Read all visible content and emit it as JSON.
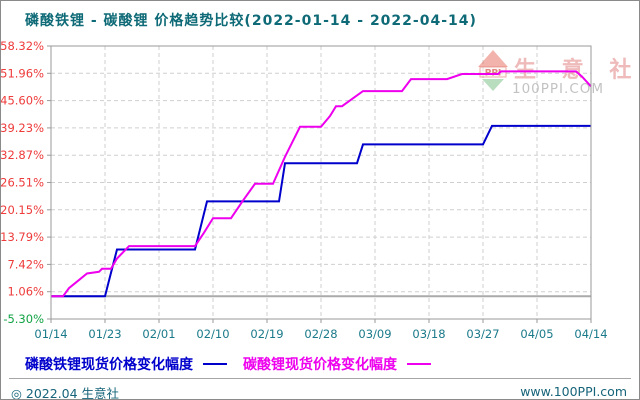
{
  "title": "磷酸铁锂 - 碳酸锂 价格趋势比较(2022-01-14 - 2022-04-14)",
  "colors": {
    "title_teal": "#0e6a76",
    "x_label_teal": "#1b7a8a",
    "y_label_red": "#ee3b3b",
    "y_label_green": "#12a345",
    "grid": "#cfcfcf",
    "plot_border": "#9a9a9a",
    "zero_line": "#aaaaaa",
    "lfp_blue": "#0000cc",
    "carbonate_magenta": "#ee00ee"
  },
  "chart_data": {
    "type": "line",
    "title": "磷酸铁锂 - 碳酸锂 价格趋势比较(2022-01-14 - 2022-04-14)",
    "x_tick_labels": [
      "01/14",
      "01/23",
      "02/01",
      "02/10",
      "02/19",
      "02/28",
      "03/09",
      "03/18",
      "03/27",
      "04/05",
      "04/14"
    ],
    "y_tick_labels": [
      "58.32%",
      "51.96%",
      "45.60%",
      "39.23%",
      "32.87%",
      "26.51%",
      "20.15%",
      "13.79%",
      "7.42%",
      "1.06%",
      "-5.30%"
    ],
    "y_tick_values": [
      58.32,
      51.96,
      45.6,
      39.23,
      32.87,
      26.51,
      20.15,
      13.79,
      7.42,
      1.06,
      -5.3
    ],
    "x_range_days": [
      0,
      90
    ],
    "y_range": [
      -5.3,
      58.32
    ],
    "zero_baseline": 0,
    "grid": true,
    "legend_position": "bottom",
    "series": [
      {
        "name": "磷酸铁锂现货价格变化幅度",
        "color": "#0000cc",
        "points": [
          [
            0,
            0
          ],
          [
            9,
            0
          ],
          [
            10,
            5.5
          ],
          [
            11,
            10.9
          ],
          [
            24,
            10.9
          ],
          [
            25,
            16.5
          ],
          [
            26,
            22.1
          ],
          [
            38,
            22.1
          ],
          [
            39,
            31.0
          ],
          [
            51,
            31.0
          ],
          [
            52,
            35.4
          ],
          [
            72,
            35.4
          ],
          [
            73.5,
            39.7
          ],
          [
            90,
            39.7
          ]
        ]
      },
      {
        "name": "碳酸锂现货价格变化幅度",
        "color": "#ee00ee",
        "points": [
          [
            0,
            0
          ],
          [
            2,
            0
          ],
          [
            3,
            1.9
          ],
          [
            4.5,
            3.6
          ],
          [
            6,
            5.3
          ],
          [
            8,
            5.7
          ],
          [
            8.5,
            6.4
          ],
          [
            10,
            6.4
          ],
          [
            11,
            8.8
          ],
          [
            13,
            11.7
          ],
          [
            24,
            11.7
          ],
          [
            25.5,
            14.8
          ],
          [
            27,
            18.2
          ],
          [
            30,
            18.2
          ],
          [
            32,
            22.3
          ],
          [
            34,
            26.2
          ],
          [
            37,
            26.2
          ],
          [
            39,
            32.5
          ],
          [
            41.5,
            39.5
          ],
          [
            45,
            39.5
          ],
          [
            46.5,
            42.0
          ],
          [
            47.5,
            44.3
          ],
          [
            48.5,
            44.3
          ],
          [
            52,
            47.8
          ],
          [
            58.5,
            47.8
          ],
          [
            60,
            50.6
          ],
          [
            66,
            50.6
          ],
          [
            68.5,
            51.8
          ],
          [
            74.5,
            51.8
          ],
          [
            75,
            52.4
          ],
          [
            87.5,
            52.4
          ],
          [
            88.5,
            51.2
          ],
          [
            90,
            48.9
          ]
        ]
      }
    ]
  },
  "watermark": {
    "logo_text": "PPI",
    "site_name": "生 意 社",
    "site_url": "100PPI.COM"
  },
  "footer": {
    "copyright": "◎ 2022.04 生意社",
    "website": "www.100PPI.com"
  }
}
